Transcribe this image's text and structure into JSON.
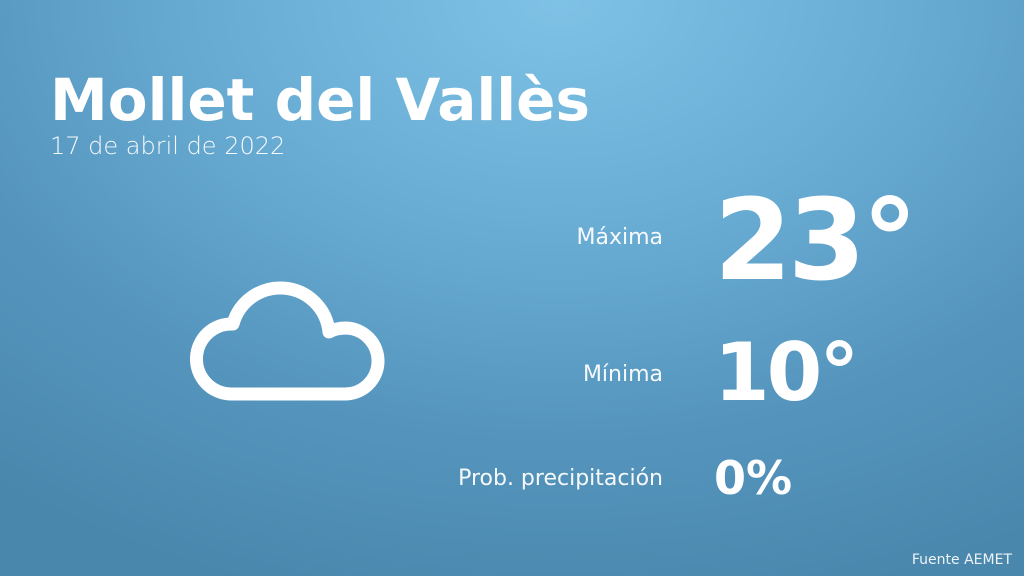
{
  "location": "Mollet del Vallès",
  "date": "17 de abril de 2022",
  "weather_icon": "cloud-icon",
  "max": {
    "label": "Máxima",
    "value": "23°"
  },
  "min": {
    "label": "Mínima",
    "value": "10°"
  },
  "precip": {
    "label": "Prob. precipitación",
    "value": "0%"
  },
  "source": "Fuente AEMET",
  "colors": {
    "background_top": "#7fc2e6",
    "background_bottom": "#4a87ad",
    "text": "#ffffff"
  }
}
